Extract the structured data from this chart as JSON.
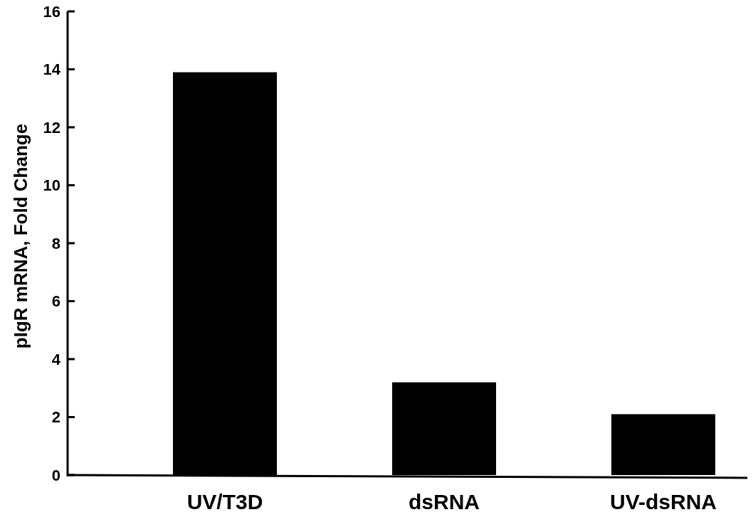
{
  "chart_data": {
    "type": "bar",
    "ylabel": "pIgR mRNA,  Fold Change",
    "categories": [
      "UV/T3D",
      "dsRNA",
      "UV-dsRNA"
    ],
    "values": [
      13.9,
      3.2,
      2.1
    ],
    "color": "#000000",
    "ylim": [
      0,
      16
    ],
    "yticks": [
      0,
      2,
      4,
      6,
      8,
      10,
      12,
      14,
      16
    ],
    "grid": false
  }
}
